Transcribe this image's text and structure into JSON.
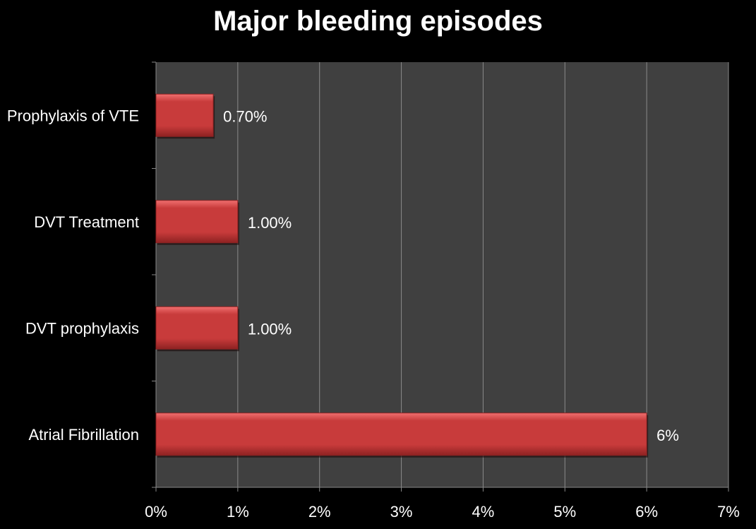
{
  "chart_data": {
    "type": "bar",
    "orientation": "horizontal",
    "title": "Major bleeding episodes",
    "categories": [
      "Prophylaxis of VTE",
      "DVT Treatment",
      "DVT prophylaxis",
      "Atrial Fibrillation"
    ],
    "values": [
      0.7,
      1.0,
      1.0,
      6.0
    ],
    "value_labels": [
      "0.70%",
      "1.00%",
      "1.00%",
      "6%"
    ],
    "xlim": [
      0,
      7
    ],
    "xticks": [
      "0%",
      "1%",
      "2%",
      "3%",
      "4%",
      "5%",
      "6%",
      "7%"
    ],
    "grid": true,
    "legend": "none",
    "colors": {
      "background": "#000000",
      "plot_area": "#404040",
      "bar": "#c83b3b",
      "bar_light": "#f07070",
      "bar_dark": "#8e2222",
      "gridline": "#8a8a8a",
      "text": "#ffffff"
    }
  }
}
